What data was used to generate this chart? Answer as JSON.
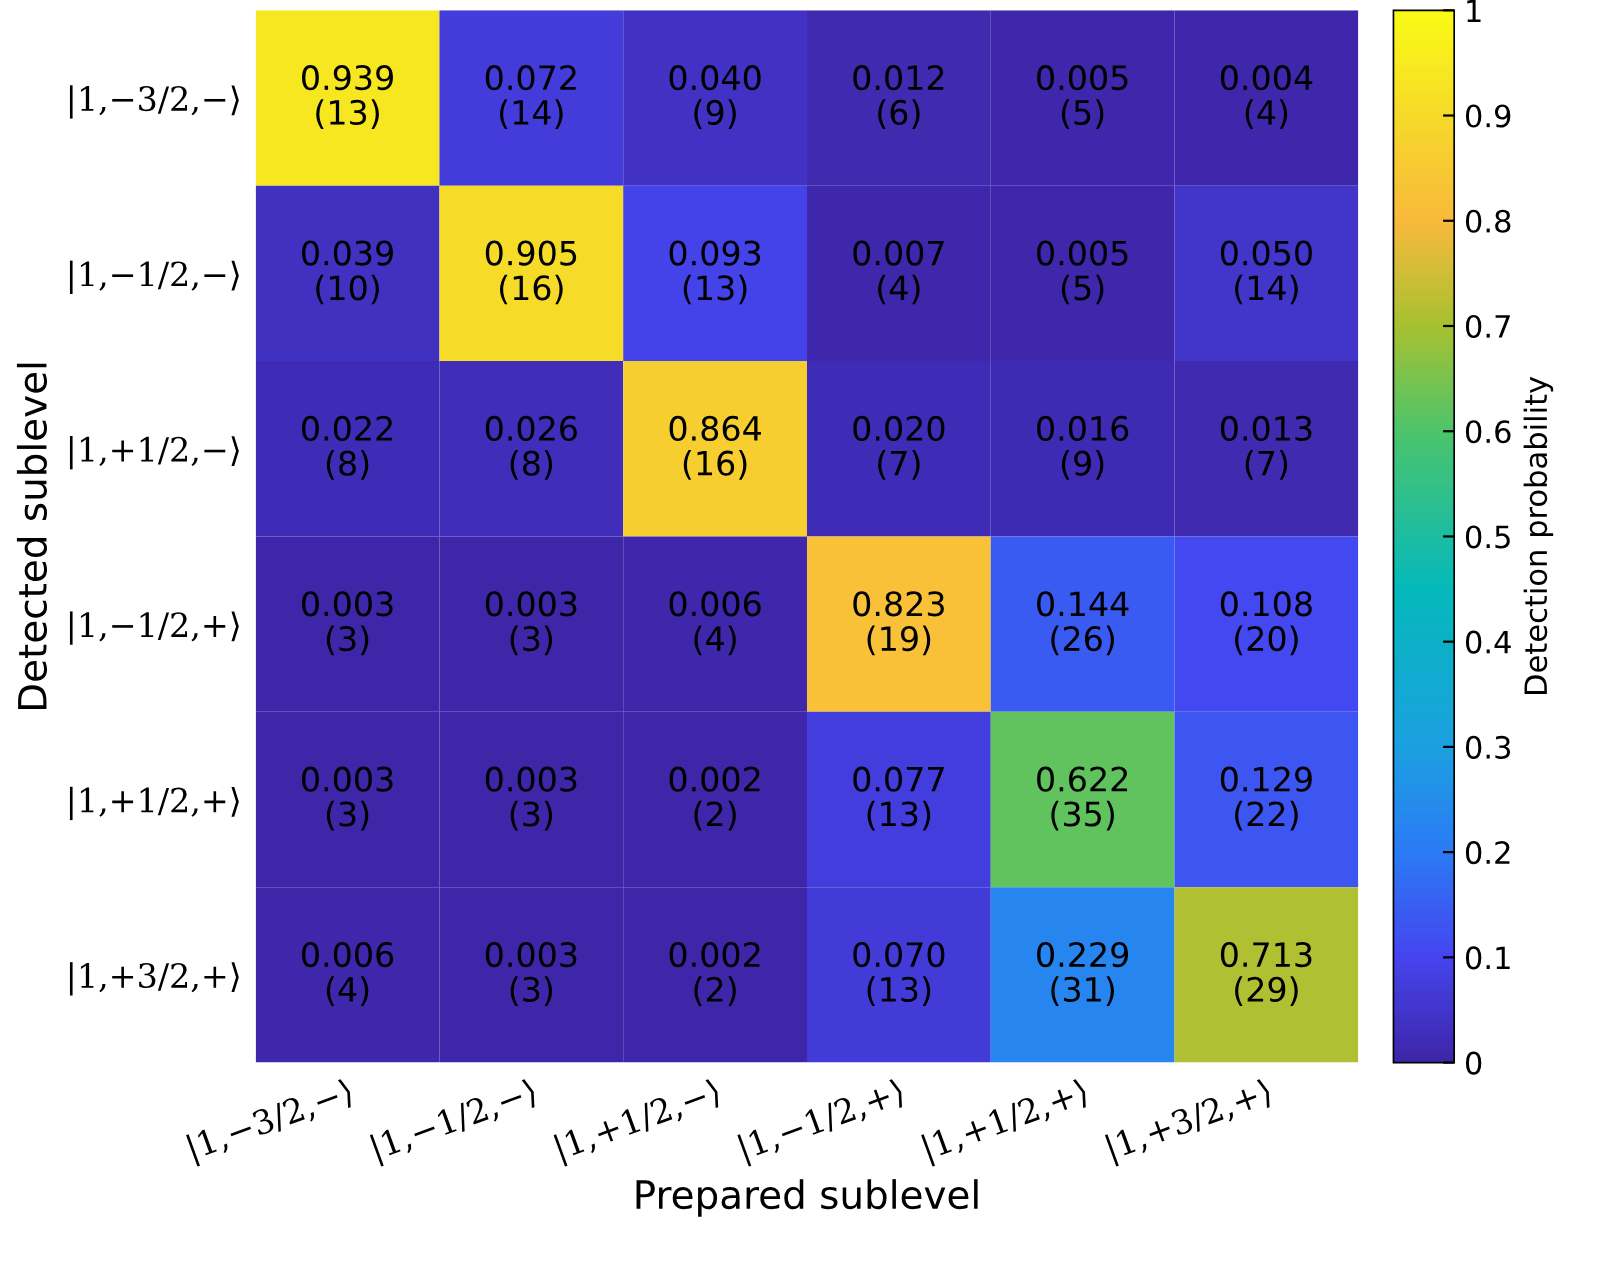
{
  "chart_data": {
    "type": "heatmap",
    "xlabel": "Prepared sublevel",
    "ylabel": "Detected sublevel",
    "clabel": "Detection probability",
    "categories": [
      "|1,−3/2,−⟩",
      "|1,−1/2,−⟩",
      "|1,+1/2,−⟩",
      "|1,−1/2,+⟩",
      "|1,+1/2,+⟩",
      "|1,+3/2,+⟩"
    ],
    "y_categories": [
      "|1,−3/2,−⟩",
      "|1,−1/2,−⟩",
      "|1,+1/2,−⟩",
      "|1,−1/2,+⟩",
      "|1,+1/2,+⟩",
      "|1,+3/2,+⟩"
    ],
    "cells": [
      [
        0.939,
        0.072,
        0.04,
        0.012,
        0.005,
        0.004
      ],
      [
        0.039,
        0.905,
        0.093,
        0.007,
        0.005,
        0.05
      ],
      [
        0.022,
        0.026,
        0.864,
        0.02,
        0.016,
        0.013
      ],
      [
        0.003,
        0.003,
        0.006,
        0.823,
        0.144,
        0.108
      ],
      [
        0.003,
        0.003,
        0.002,
        0.077,
        0.622,
        0.129
      ],
      [
        0.006,
        0.003,
        0.002,
        0.07,
        0.229,
        0.713
      ]
    ],
    "cell_labels": [
      [
        "0.939\n(13)",
        "0.072\n(14)",
        "0.040\n(9)",
        "0.012\n(6)",
        "0.005\n(5)",
        "0.004\n(4)"
      ],
      [
        "0.039\n(10)",
        "0.905\n(16)",
        "0.093\n(13)",
        "0.007\n(4)",
        "0.005\n(5)",
        "0.050\n(14)"
      ],
      [
        "0.022\n(8)",
        "0.026\n(8)",
        "0.864\n(16)",
        "0.020\n(7)",
        "0.016\n(9)",
        "0.013\n(7)"
      ],
      [
        "0.003\n(3)",
        "0.003\n(3)",
        "0.006\n(4)",
        "0.823\n(19)",
        "0.144\n(26)",
        "0.108\n(20)"
      ],
      [
        "0.003\n(3)",
        "0.003\n(3)",
        "0.002\n(2)",
        "0.077\n(13)",
        "0.622\n(35)",
        "0.129\n(22)"
      ],
      [
        "0.006\n(4)",
        "0.003\n(3)",
        "0.002\n(2)",
        "0.070\n(13)",
        "0.229\n(31)",
        "0.713\n(29)"
      ]
    ],
    "clim": [
      0,
      1
    ],
    "cticks": [
      0,
      0.1,
      0.2,
      0.3,
      0.4,
      0.5,
      0.6,
      0.7,
      0.8,
      0.9,
      1
    ]
  }
}
